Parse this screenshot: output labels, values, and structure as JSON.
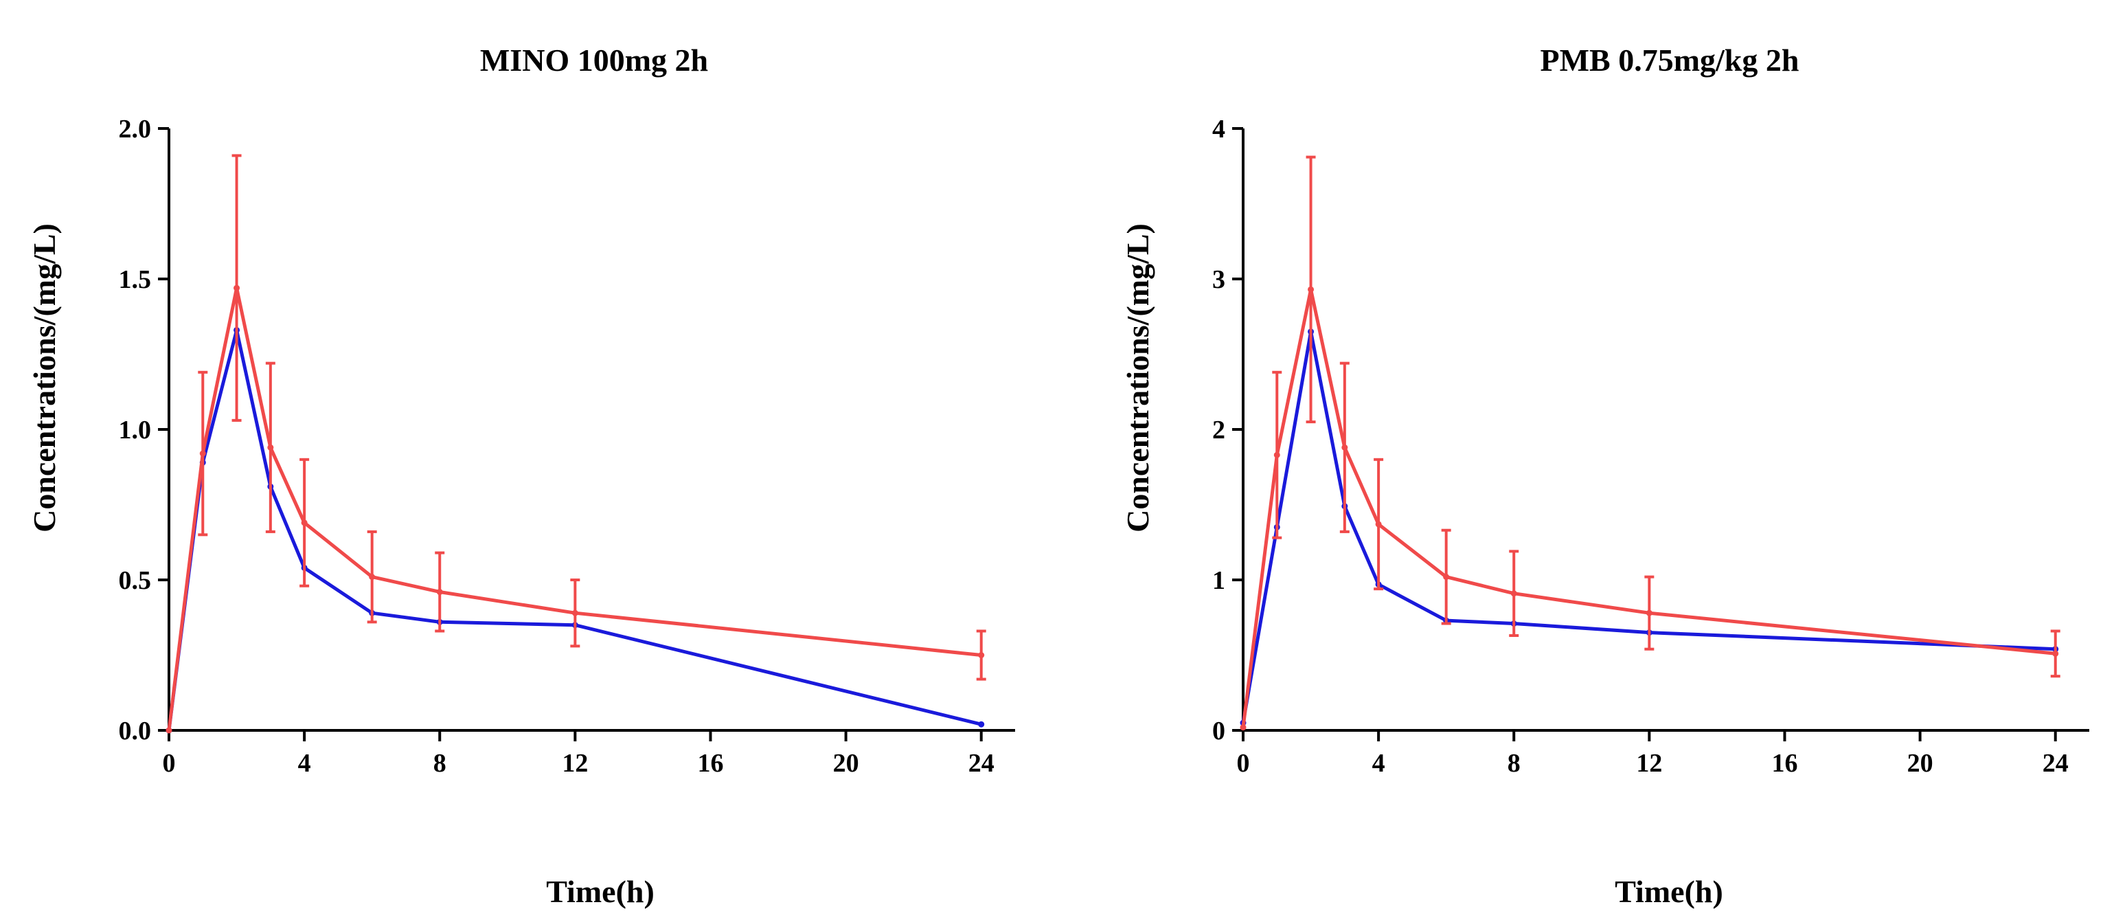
{
  "chart_data": [
    {
      "type": "line",
      "title": "MINO 100mg 2h",
      "xlabel": "Time(h)",
      "ylabel": "Concentrations/(mg/L)",
      "xlim": [
        0,
        25
      ],
      "ylim": [
        0,
        2.0
      ],
      "xticks": [
        0,
        4,
        8,
        12,
        16,
        20,
        24
      ],
      "xtick_labels": [
        "0",
        "4",
        "8",
        "12",
        "16",
        "20",
        "24"
      ],
      "yticks": [
        0,
        0.5,
        1.0,
        1.5,
        2.0
      ],
      "ytick_labels": [
        "0.0",
        "0.5",
        "1.0",
        "1.5",
        "2.0"
      ],
      "x": [
        0,
        1,
        2,
        3,
        4,
        6,
        8,
        12,
        24
      ],
      "series": [
        {
          "name": "blue",
          "color": "#1a1adb",
          "values": [
            0,
            0.89,
            1.33,
            0.81,
            0.54,
            0.39,
            0.36,
            0.35,
            0.02
          ]
        },
        {
          "name": "red",
          "color": "#f04a4a",
          "values": [
            0,
            0.92,
            1.47,
            0.94,
            0.69,
            0.51,
            0.46,
            0.39,
            0.25
          ],
          "error": [
            0,
            0.27,
            0.44,
            0.28,
            0.21,
            0.15,
            0.13,
            0.11,
            0.08
          ]
        }
      ]
    },
    {
      "type": "line",
      "title": "PMB 0.75mg/kg 2h",
      "xlabel": "Time(h)",
      "ylabel": "Concentrations/(mg/L)",
      "xlim": [
        0,
        25
      ],
      "ylim": [
        0,
        4
      ],
      "xticks": [
        0,
        4,
        8,
        12,
        16,
        20,
        24
      ],
      "xtick_labels": [
        "0",
        "4",
        "8",
        "12",
        "16",
        "20",
        "24"
      ],
      "yticks": [
        0,
        1,
        2,
        3,
        4
      ],
      "ytick_labels": [
        "0",
        "1",
        "2",
        "3",
        "4"
      ],
      "x": [
        0,
        1,
        2,
        3,
        4,
        6,
        8,
        12,
        24
      ],
      "series": [
        {
          "name": "blue",
          "color": "#1a1adb",
          "values": [
            0.05,
            1.35,
            2.65,
            1.49,
            0.97,
            0.73,
            0.71,
            0.65,
            0.54
          ]
        },
        {
          "name": "red",
          "color": "#f04a4a",
          "values": [
            0.02,
            1.83,
            2.93,
            1.88,
            1.37,
            1.02,
            0.91,
            0.78,
            0.51
          ],
          "error": [
            0,
            0.55,
            0.88,
            0.56,
            0.43,
            0.31,
            0.28,
            0.24,
            0.15
          ]
        }
      ]
    }
  ]
}
